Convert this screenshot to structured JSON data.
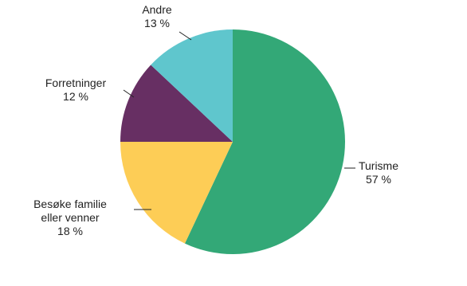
{
  "chart_data": {
    "type": "pie",
    "categories": [
      "Turisme",
      "Besøke familie eller venner",
      "Forretninger",
      "Andre"
    ],
    "values": [
      57,
      18,
      12,
      13
    ],
    "value_labels": [
      "57 %",
      "18 %",
      "12 %",
      "13 %"
    ],
    "colors": [
      "#33a877",
      "#fdcd56",
      "#672f63",
      "#5fc6cd"
    ]
  }
}
